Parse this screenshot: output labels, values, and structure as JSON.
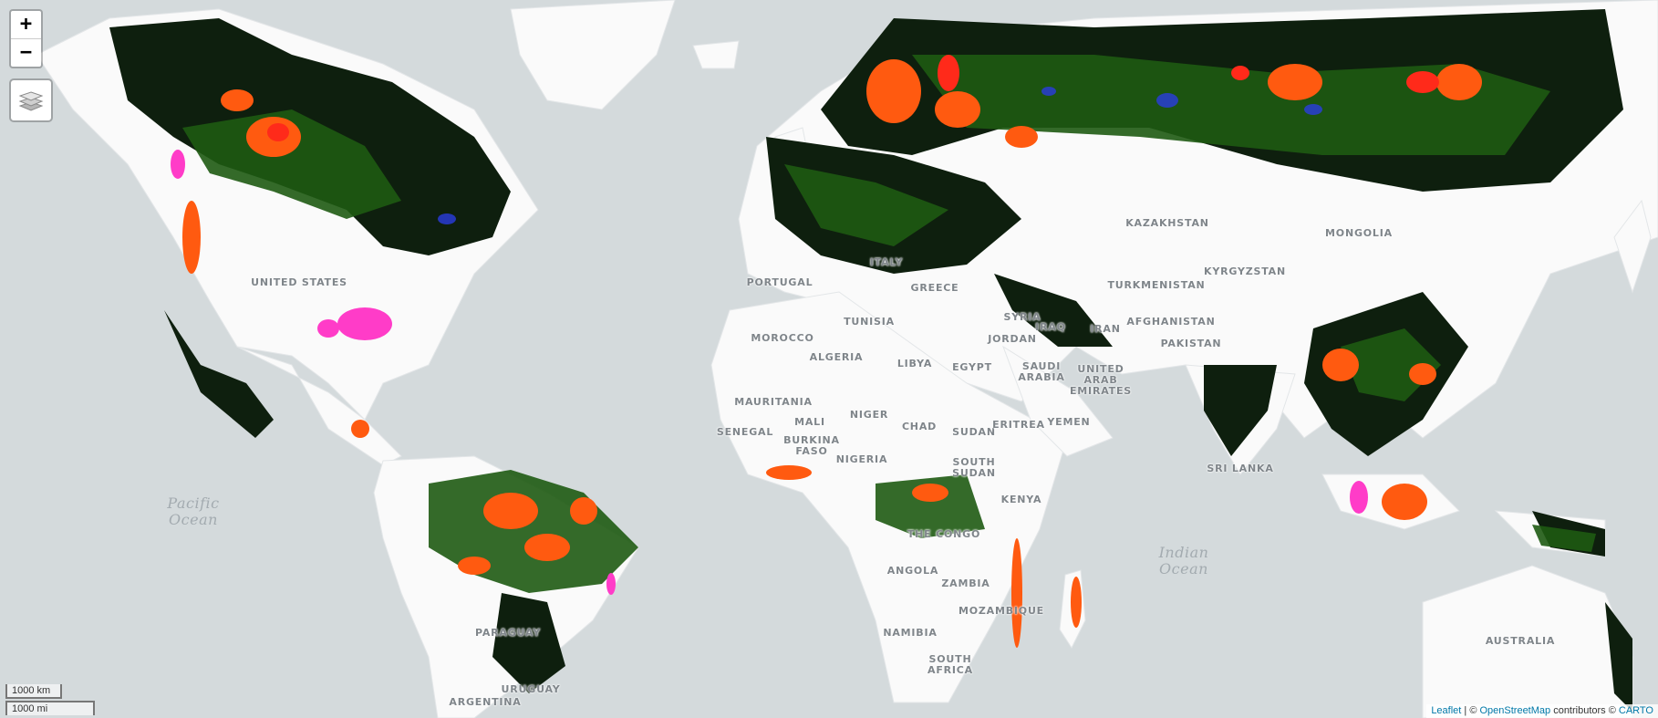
{
  "map": {
    "zoom_in_label": "+",
    "zoom_out_label": "−",
    "layers_icon": "layers-icon",
    "colors": {
      "water": "#d4dadc",
      "land": "#fafafa",
      "forest_dark": "#0e1f0e",
      "forest": "#1e5a12",
      "loss_orange": "#ff5a10",
      "loss_red": "#ff2a1a",
      "gain_magenta": "#ff3cc8",
      "gain_blue": "#2a3ce0"
    },
    "countries": [
      "United States",
      "Portugal",
      "Italy",
      "Greece",
      "Tunisia",
      "Morocco",
      "Algeria",
      "Libya",
      "Egypt",
      "Syria",
      "Iraq",
      "Iran",
      "Jordan",
      "Saudi Arabia",
      "United Arab Emirates",
      "Yemen",
      "Mauritania",
      "Mali",
      "Niger",
      "Chad",
      "Sudan",
      "Eritrea",
      "Senegal",
      "Burkina Faso",
      "Nigeria",
      "South Sudan",
      "Kenya",
      "The Congo",
      "Angola",
      "Zambia",
      "Mozambique",
      "Namibia",
      "South Africa",
      "Kazakhstan",
      "Mongolia",
      "Turkmenistan",
      "Kyrgyzstan",
      "Afghanistan",
      "Pakistan",
      "Sri Lanka",
      "Australia",
      "Argentina",
      "Uruguay",
      "Paraguay"
    ],
    "oceans": [
      [
        "Pacific",
        "Ocean"
      ],
      [
        "Indian",
        "Ocean"
      ]
    ],
    "scale": {
      "km": "1000 km",
      "mi": "1000 mi"
    },
    "attribution": {
      "leaflet": "Leaflet",
      "sep": " | © ",
      "osm": "OpenStreetMap",
      "contrib": " contributors © ",
      "carto": "CARTO"
    }
  }
}
